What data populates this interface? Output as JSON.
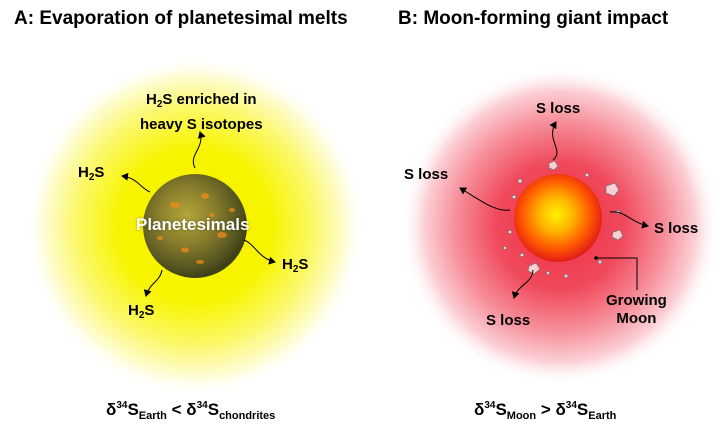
{
  "panel_a": {
    "title": "A: Evaporation of planetesimal melts",
    "center_label": "Planetesimals",
    "enriched_label": {
      "species": "H",
      "sub": "2",
      "rest": "S enriched in",
      "line2": "heavy S isotopes"
    },
    "h2s": {
      "species": "H",
      "sub": "2",
      "rest": "S"
    },
    "equation": {
      "delta": "δ",
      "mass": "34",
      "elem": "S",
      "sub1": "Earth",
      "op": " < ",
      "sub2": "chondrites"
    }
  },
  "panel_b": {
    "title": "B: Moon-forming giant impact",
    "s_loss": "S loss",
    "growing_moon": {
      "line1": "Growing",
      "line2": "Moon"
    },
    "equation": {
      "delta": "δ",
      "mass": "34",
      "elem": "S",
      "sub1": "Moon",
      "op": " > ",
      "sub2": "Earth"
    }
  }
}
